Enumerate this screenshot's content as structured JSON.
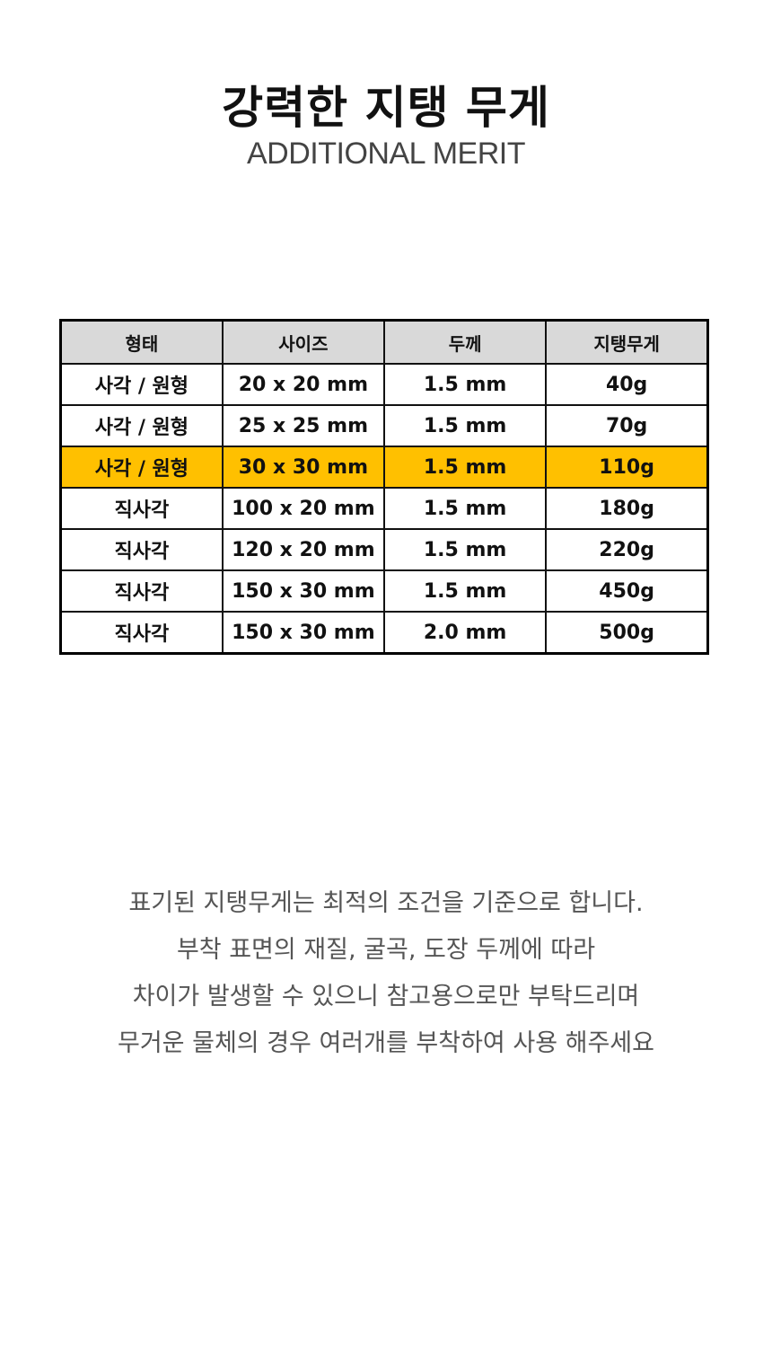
{
  "title": "강력한 지탱 무게",
  "subtitle": "ADDITIONAL MERIT",
  "table": {
    "headers": [
      "형태",
      "사이즈",
      "두께",
      "지탱무게"
    ],
    "highlight_color": "#ffc000",
    "rows": [
      [
        "사각 / 원형",
        "20 x 20 mm",
        "1.5 mm",
        "40g"
      ],
      [
        "사각 / 원형",
        "25 x 25 mm",
        "1.5 mm",
        "70g"
      ],
      [
        "사각 / 원형",
        "30 x 30 mm",
        "1.5 mm",
        "110g"
      ],
      [
        "직사각",
        "100 x 20 mm",
        "1.5 mm",
        "180g"
      ],
      [
        "직사각",
        "120 x 20 mm",
        "1.5 mm",
        "220g"
      ],
      [
        "직사각",
        "150 x 30 mm",
        "1.5 mm",
        "450g"
      ],
      [
        "직사각",
        "150 x 30 mm",
        "2.0 mm",
        "500g"
      ]
    ],
    "highlighted_row": 2
  },
  "note": [
    "표기된 지탱무게는 최적의 조건을 기준으로 합니다.",
    "부착 표면의 재질, 굴곡, 도장 두께에 따라",
    "차이가 발생할 수 있으니 참고용으로만 부탁드리며",
    "무거운 물체의 경우 여러개를 부착하여 사용 해주세요"
  ]
}
